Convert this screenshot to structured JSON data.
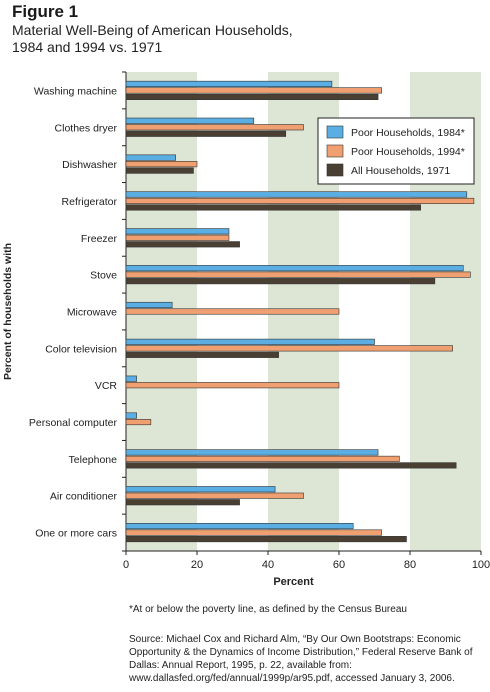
{
  "figure_label": "Figure 1",
  "title_line1": "Material Well-Being of American Households,",
  "title_line2": "1984 and 1994 vs. 1971",
  "footnote": "*At or below the poverty line, as defined by the Census Bureau",
  "source": "Source: Michael Cox and Richard Alm, “By Our Own Bootstraps: Economic Opportunity & the Dynamics of Income Distribution,” Federal Reserve Bank of Dallas: Annual Report, 1995, p. 22, available from: www.dallasfed.org/fed/annual/1999p/ar95.pdf, accessed January 3, 2006.",
  "colors": {
    "series1": "#5aaee3",
    "series2": "#f0a070",
    "series3": "#4a3f33",
    "band": "#dde6d5"
  },
  "chart_data": {
    "type": "bar",
    "orientation": "horizontal",
    "xlabel": "Percent",
    "ylabel": "Percent of households with",
    "xlim": [
      0,
      100
    ],
    "xticks": [
      0,
      20,
      40,
      60,
      80,
      100
    ],
    "legend_position": "top-right",
    "categories": [
      "Washing machine",
      "Clothes dryer",
      "Dishwasher",
      "Refrigerator",
      "Freezer",
      "Stove",
      "Microwave",
      "Color television",
      "VCR",
      "Personal computer",
      "Telephone",
      "Air conditioner",
      "One or more cars"
    ],
    "series": [
      {
        "name": "Poor Households, 1984*",
        "values": [
          58,
          36,
          14,
          96,
          29,
          95,
          13,
          70,
          3,
          3,
          71,
          42,
          64
        ]
      },
      {
        "name": "Poor Households, 1994*",
        "values": [
          72,
          50,
          20,
          98,
          29,
          97,
          60,
          92,
          60,
          7,
          77,
          50,
          72
        ]
      },
      {
        "name": "All Households, 1971",
        "values": [
          71,
          45,
          19,
          83,
          32,
          87,
          null,
          43,
          null,
          null,
          93,
          32,
          79
        ]
      }
    ]
  }
}
